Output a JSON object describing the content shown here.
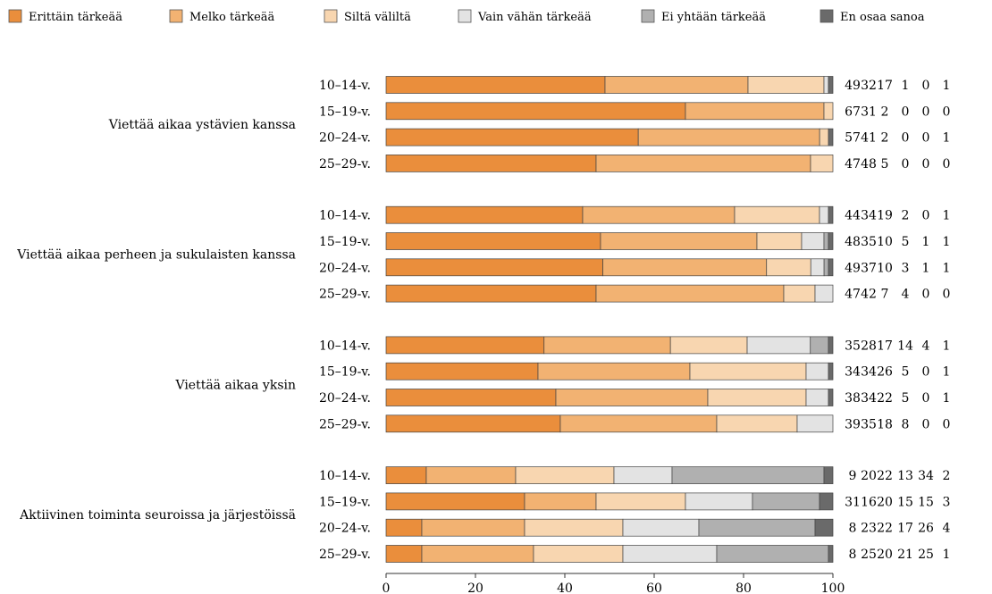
{
  "chart_data": {
    "type": "bar",
    "orientation": "horizontal",
    "stacked": true,
    "xlim": [
      0,
      100
    ],
    "xticks": [
      0,
      20,
      40,
      60,
      80,
      100
    ],
    "grid": false,
    "legend_position": "top",
    "series": [
      {
        "name": "Erittäin tärkeää",
        "color": "#ea8e3c"
      },
      {
        "name": "Melko tärkeää",
        "color": "#f2b272"
      },
      {
        "name": "Siltä väliltä",
        "color": "#f8d6b0"
      },
      {
        "name": "Vain vähän tärkeää",
        "color": "#e3e3e3"
      },
      {
        "name": "Ei yhtään tärkeää",
        "color": "#b0b0b0"
      },
      {
        "name": "En osaa sanoa",
        "color": "#6a6a6a"
      }
    ],
    "groups": [
      {
        "label": "Viettää aikaa ystävien kanssa",
        "rows": [
          {
            "label": "10–14-v.",
            "values": [
              49,
              32,
              17,
              1,
              0,
              1
            ]
          },
          {
            "label": "15–19-v.",
            "values": [
              67,
              31,
              2,
              0,
              0,
              0
            ]
          },
          {
            "label": "20–24-v.",
            "values": [
              57,
              41,
              2,
              0,
              0,
              1
            ]
          },
          {
            "label": "25–29-v.",
            "values": [
              47,
              48,
              5,
              0,
              0,
              0
            ]
          }
        ]
      },
      {
        "label": "Viettää aikaa perheen ja sukulaisten kanssa",
        "rows": [
          {
            "label": "10–14-v.",
            "values": [
              44,
              34,
              19,
              2,
              0,
              1
            ]
          },
          {
            "label": "15–19-v.",
            "values": [
              48,
              35,
              10,
              5,
              1,
              1
            ]
          },
          {
            "label": "20–24-v.",
            "values": [
              49,
              37,
              10,
              3,
              1,
              1
            ]
          },
          {
            "label": "25–29-v.",
            "values": [
              47,
              42,
              7,
              4,
              0,
              0
            ]
          }
        ]
      },
      {
        "label": "Viettää aikaa yksin",
        "rows": [
          {
            "label": "10–14-v.",
            "values": [
              35,
              28,
              17,
              14,
              4,
              1
            ]
          },
          {
            "label": "15–19-v.",
            "values": [
              34,
              34,
              26,
              5,
              0,
              1
            ]
          },
          {
            "label": "20–24-v.",
            "values": [
              38,
              34,
              22,
              5,
              0,
              1
            ]
          },
          {
            "label": "25–29-v.",
            "values": [
              39,
              35,
              18,
              8,
              0,
              0
            ]
          }
        ]
      },
      {
        "label": "Aktiivinen toiminta seuroissa ja järjestöissä",
        "rows": [
          {
            "label": "10–14-v.",
            "values": [
              9,
              20,
              22,
              13,
              34,
              2
            ]
          },
          {
            "label": "15–19-v.",
            "values": [
              31,
              16,
              20,
              15,
              15,
              3
            ]
          },
          {
            "label": "20–24-v.",
            "values": [
              8,
              23,
              22,
              17,
              26,
              4
            ]
          },
          {
            "label": "25–29-v.",
            "values": [
              8,
              25,
              20,
              21,
              25,
              1
            ]
          }
        ]
      }
    ]
  }
}
